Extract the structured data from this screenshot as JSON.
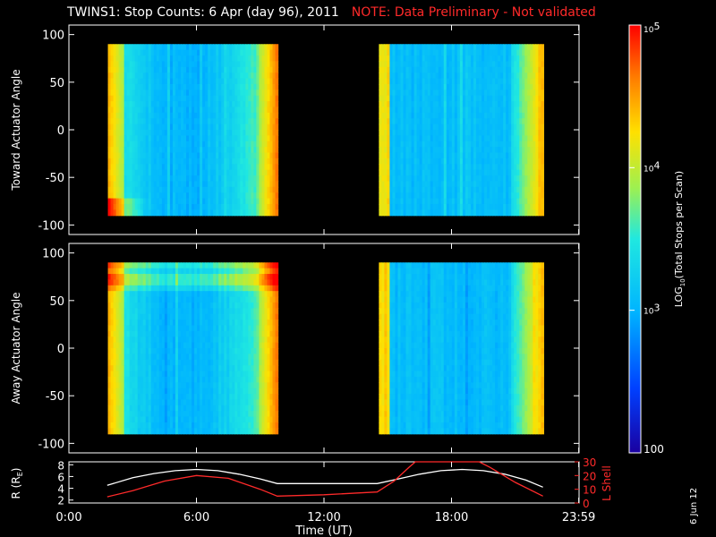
{
  "title": "TWINS1: Stop Counts:  6 Apr (day  96), 2011",
  "note": "NOTE: Data Preliminary - Not validated",
  "side_date": "6 Jun 12",
  "colors": {
    "background": "#000000",
    "axes": "#ffffff",
    "note": "#ff2a2a",
    "r_line": "#ffffff",
    "lshell_line": "#ff2a2a"
  },
  "chart_data": [
    {
      "type": "heatmap",
      "ylabel": "Toward Actuator Angle",
      "ylim": [
        -110,
        110
      ],
      "y_ticks": [
        "100",
        "50",
        "0",
        "-50",
        "-100"
      ],
      "x_ticks": [
        "0:00",
        "6:00",
        "12:00",
        "18:00",
        "23:59"
      ],
      "data_blocks": [
        {
          "start": "1:50",
          "end": "9:50",
          "angle_range": [
            -90,
            90
          ]
        },
        {
          "start": "14:35",
          "end": "22:20",
          "angle_range": [
            -90,
            90
          ]
        }
      ]
    },
    {
      "type": "heatmap",
      "ylabel": "Away Actuator Angle",
      "ylim": [
        -110,
        110
      ],
      "y_ticks": [
        "100",
        "50",
        "0",
        "-50",
        "-100"
      ],
      "x_ticks": [
        "0:00",
        "6:00",
        "12:00",
        "18:00",
        "23:59"
      ],
      "data_blocks": [
        {
          "start": "1:50",
          "end": "9:50",
          "angle_range": [
            -90,
            90
          ]
        },
        {
          "start": "14:35",
          "end": "22:20",
          "angle_range": [
            -90,
            90
          ]
        }
      ]
    },
    {
      "type": "line",
      "xlabel": "Time (UT)",
      "x_ticks": [
        "0:00",
        "6:00",
        "12:00",
        "18:00",
        "23:59"
      ],
      "left_axis": {
        "label": "R (R",
        "label_sub": "E",
        "label_end": ")",
        "ylim": [
          1.5,
          8.5
        ],
        "ticks": [
          "8",
          "6",
          "4",
          "2"
        ]
      },
      "right_axis": {
        "label": "L Shell",
        "ylim": [
          0,
          30
        ],
        "ticks": [
          "30",
          "20",
          "10",
          "0"
        ]
      },
      "series": [
        {
          "axis": "left",
          "x": [
            1.8,
            3,
            4,
            5,
            6,
            7,
            8,
            9,
            9.8,
            11,
            12,
            13,
            14.5,
            15.5,
            16.5,
            17.5,
            18.5,
            19.5,
            20.5,
            21.5,
            22.3
          ],
          "y": [
            4.5,
            5.8,
            6.5,
            7.0,
            7.2,
            7.0,
            6.4,
            5.6,
            4.8,
            4.8,
            4.8,
            4.8,
            4.8,
            5.6,
            6.4,
            7.0,
            7.2,
            7.0,
            6.4,
            5.4,
            4.2
          ]
        },
        {
          "axis": "right",
          "x": [
            1.8,
            3,
            4.5,
            6,
            7.5,
            9,
            9.8,
            12,
            14.5,
            15.3,
            16.0,
            16.3,
            19.3,
            19.8,
            21,
            22.3
          ],
          "y": [
            4.5,
            9,
            16,
            20,
            18,
            10,
            5,
            6,
            8,
            16,
            26,
            31,
            31,
            26,
            15,
            5
          ]
        }
      ]
    }
  ],
  "colorbar": {
    "label": "LOG",
    "label_sub": "10",
    "label_rest": "(Total Stops per Scan)",
    "ticks": [
      {
        "value": 5,
        "base": "10",
        "exp": "5"
      },
      {
        "value": 4,
        "base": "10",
        "exp": "4"
      },
      {
        "value": 3,
        "base": "10",
        "exp": "3"
      },
      {
        "value": 2,
        "text": "100"
      }
    ],
    "range": [
      2,
      5
    ]
  }
}
